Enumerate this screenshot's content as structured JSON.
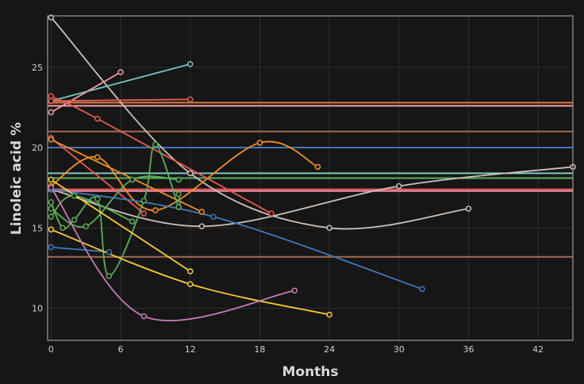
{
  "chart_data": {
    "type": "line",
    "xlabel": "Months",
    "ylabel": "Linoleic acid %",
    "xlim": [
      -0.3,
      45
    ],
    "ylim": [
      8,
      28.2
    ],
    "xticks": [
      0,
      6,
      12,
      18,
      24,
      30,
      36,
      42
    ],
    "yticks": [
      10,
      15,
      20,
      25
    ],
    "grid": true,
    "hlines": [
      {
        "y": 22.8,
        "color": "#e07a3f"
      },
      {
        "y": 22.6,
        "color": "#f2a0a4"
      },
      {
        "y": 21.0,
        "color": "#a26a4f"
      },
      {
        "y": 20.0,
        "color": "#3e78b6"
      },
      {
        "y": 18.4,
        "color": "#7fc8c0"
      },
      {
        "y": 18.1,
        "color": "#5cae5a"
      },
      {
        "y": 17.4,
        "color": "#e85b56"
      },
      {
        "y": 17.3,
        "color": "#f08bb0"
      },
      {
        "y": 13.2,
        "color": "#a26a4f"
      }
    ],
    "series": [
      {
        "color": "#ccc1ba",
        "points": [
          [
            0,
            28.1
          ],
          [
            12,
            18.4
          ],
          [
            24,
            15.0
          ],
          [
            36,
            16.2
          ]
        ]
      },
      {
        "color": "#ccc1ba",
        "points": [
          [
            0,
            17.4
          ],
          [
            13,
            15.1
          ],
          [
            30,
            17.6
          ],
          [
            45,
            18.8
          ]
        ]
      },
      {
        "color": "#76c4be",
        "points": [
          [
            0,
            22.9
          ],
          [
            12,
            25.2
          ]
        ]
      },
      {
        "color": "#f2a0a4",
        "points": [
          [
            0,
            22.2
          ],
          [
            6,
            24.7
          ]
        ]
      },
      {
        "color": "#e85b56",
        "points": [
          [
            0,
            22.9
          ],
          [
            12,
            23.0
          ]
        ]
      },
      {
        "color": "#e85b56",
        "points": [
          [
            0,
            23.2
          ],
          [
            4,
            21.8
          ],
          [
            19,
            15.9
          ]
        ]
      },
      {
        "color": "#e85b56",
        "points": [
          [
            0,
            20.6
          ],
          [
            8,
            15.9
          ]
        ]
      },
      {
        "color": "#f0902a",
        "points": [
          [
            0,
            20.5
          ],
          [
            13,
            16.0
          ]
        ]
      },
      {
        "color": "#f0902a",
        "points": [
          [
            0,
            17.6
          ],
          [
            4,
            19.4
          ],
          [
            9,
            16.1
          ],
          [
            18,
            20.3
          ],
          [
            23,
            18.8
          ]
        ]
      },
      {
        "color": "#5cae5a",
        "points": [
          [
            0,
            16.6
          ],
          [
            1,
            15.0
          ],
          [
            2,
            15.5
          ],
          [
            4,
            16.8
          ],
          [
            5,
            12.0
          ],
          [
            8,
            16.7
          ],
          [
            9,
            20.2
          ],
          [
            11,
            16.3
          ],
          [
            11,
            17.1
          ]
        ]
      },
      {
        "color": "#5cae5a",
        "points": [
          [
            0,
            16.2
          ],
          [
            3,
            15.1
          ],
          [
            7,
            18.0
          ],
          [
            11,
            18.0
          ]
        ]
      },
      {
        "color": "#5cae5a",
        "points": [
          [
            0,
            15.7
          ],
          [
            2,
            17.0
          ],
          [
            7,
            15.4
          ]
        ]
      },
      {
        "color": "#3e78b6",
        "points": [
          [
            0,
            13.8
          ],
          [
            5,
            13.5
          ]
        ]
      },
      {
        "color": "#3e78b6",
        "points": [
          [
            0,
            17.4
          ],
          [
            14,
            15.7
          ],
          [
            32,
            11.2
          ]
        ]
      },
      {
        "color": "#f6cd3c",
        "points": [
          [
            0,
            18.0
          ],
          [
            12,
            12.3
          ]
        ]
      },
      {
        "color": "#f6cd3c",
        "points": [
          [
            0,
            14.9
          ],
          [
            12,
            11.5
          ],
          [
            24,
            9.6
          ]
        ]
      },
      {
        "color": "#c77cb4",
        "points": [
          [
            0,
            17.5
          ],
          [
            8,
            9.5
          ],
          [
            21,
            11.1
          ]
        ]
      }
    ]
  }
}
